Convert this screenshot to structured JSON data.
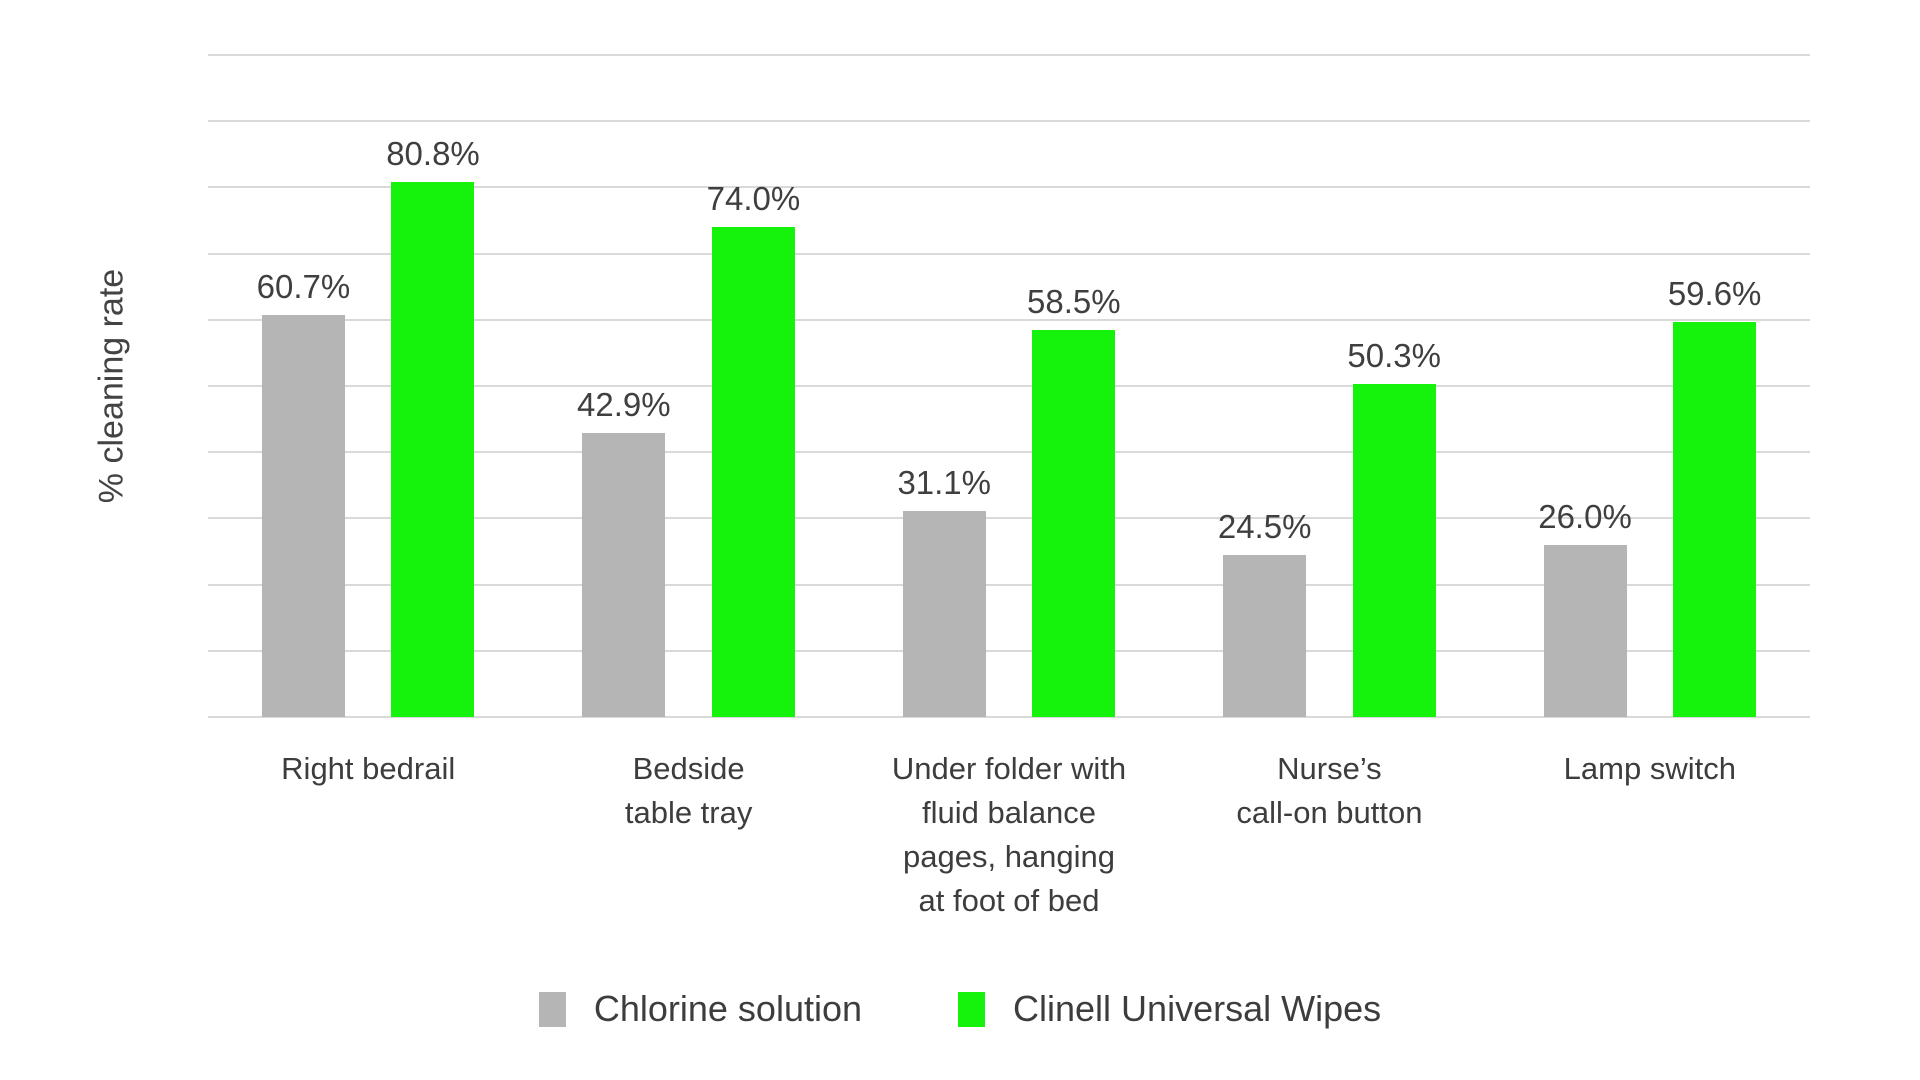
{
  "chart_data": {
    "type": "bar",
    "title": "",
    "ylabel": "% cleaning rate",
    "xlabel": "",
    "ylim": [
      0,
      100
    ],
    "gridline_step": 10,
    "grid": true,
    "legend_position": "bottom",
    "colors": {
      "gridline": "#d9d9d9",
      "data_label_text": "#3f3f3f",
      "axis_text": "#3d3d3d"
    },
    "categories": [
      [
        "Right bedrail"
      ],
      [
        "Bedside",
        "table tray"
      ],
      [
        "Under folder with",
        "fluid balance",
        "pages, hanging",
        "at foot of bed"
      ],
      [
        "Nurse’s",
        "call-on button"
      ],
      [
        "Lamp switch"
      ]
    ],
    "series": [
      {
        "name": "Chlorine solution",
        "color": "#b5b5b5",
        "values": [
          60.7,
          42.9,
          31.1,
          24.5,
          26.0
        ],
        "labels": [
          "60.7%",
          "42.9%",
          "31.1%",
          "24.5%",
          "26.0%"
        ]
      },
      {
        "name": "Clinell Universal Wipes",
        "color": "#15f30c",
        "values": [
          80.8,
          74.0,
          58.5,
          50.3,
          59.6
        ],
        "labels": [
          "80.8%",
          "74.0%",
          "58.5%",
          "50.3%",
          "59.6%"
        ]
      }
    ]
  }
}
